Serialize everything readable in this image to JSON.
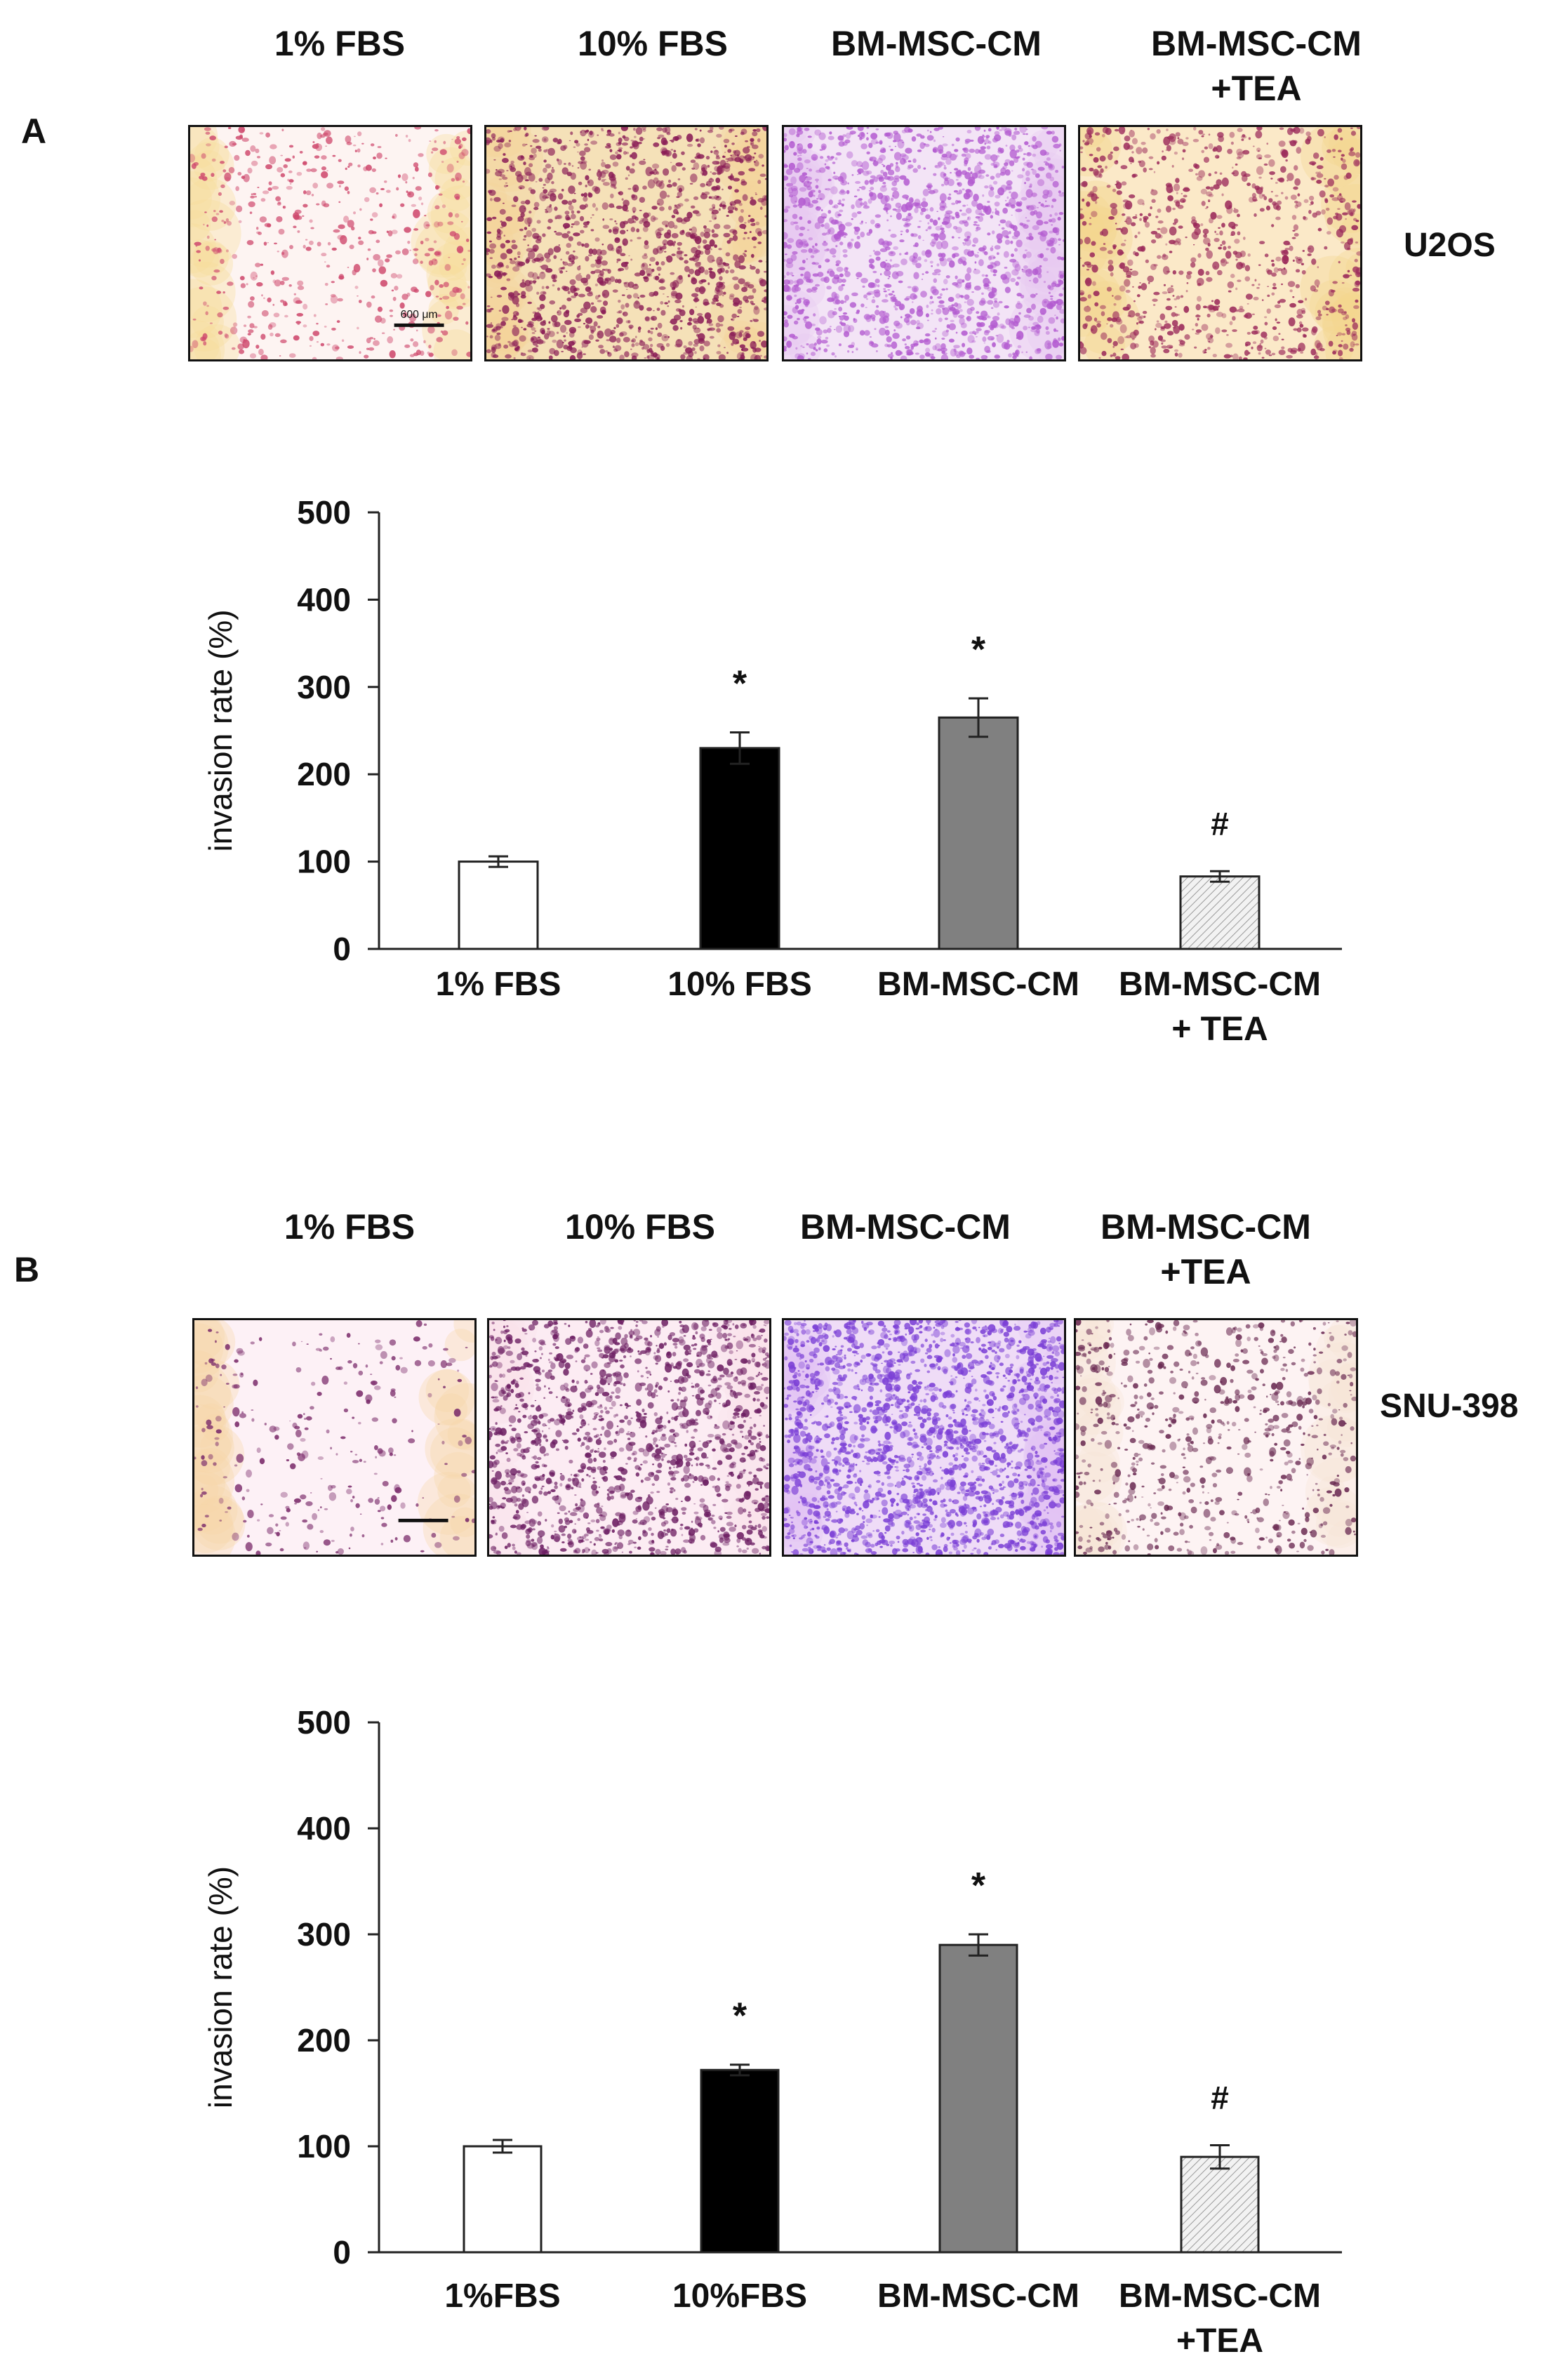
{
  "panels": [
    {
      "letter": "A",
      "cell_line": "U2OS",
      "columns": [
        {
          "title_lines": [
            "1% FBS"
          ]
        },
        {
          "title_lines": [
            "10% FBS"
          ]
        },
        {
          "title_lines": [
            "BM-MSC-CM"
          ]
        },
        {
          "title_lines": [
            "BM-MSC-CM",
            "+TEA"
          ]
        }
      ],
      "images": [
        {
          "stain": "sparse-pink",
          "bg": "#fdf4f2",
          "dot": "#cf4a6e",
          "edge": "#f6dc9a",
          "density": 520
        },
        {
          "stain": "dense-magenta",
          "bg": "#f5e1b8",
          "dot": "#8a1d56",
          "edge": "#f3d49a",
          "density": 1400
        },
        {
          "stain": "dense-violet",
          "bg": "#f3e4f6",
          "dot": "#b35bd0",
          "edge": "#e7c8f0",
          "density": 1500
        },
        {
          "stain": "medium-magenta",
          "bg": "#fbe9c8",
          "dot": "#9b2a5a",
          "edge": "#f4d690",
          "density": 900
        }
      ],
      "scale_bar_label": "600 μm",
      "scale_bar_image": 0
    },
    {
      "letter": "B",
      "cell_line": "SNU-398",
      "columns": [
        {
          "title_lines": [
            "1% FBS"
          ]
        },
        {
          "title_lines": [
            "10% FBS"
          ]
        },
        {
          "title_lines": [
            "BM-MSC-CM"
          ]
        },
        {
          "title_lines": [
            "BM-MSC-CM",
            "+TEA"
          ]
        }
      ],
      "images": [
        {
          "stain": "very-sparse",
          "bg": "#fdf1f6",
          "dot": "#7a2a6a",
          "edge": "#f5d6a8",
          "density": 260
        },
        {
          "stain": "dense-purple",
          "bg": "#fcecf3",
          "dot": "#6d1f63",
          "edge": "#f8e2ec",
          "density": 1500
        },
        {
          "stain": "dense-blue-violet",
          "bg": "#efdcf7",
          "dot": "#7b3fd6",
          "edge": "#e2c4f3",
          "density": 2000
        },
        {
          "stain": "medium-purple",
          "bg": "#fdf3f3",
          "dot": "#6a2a52",
          "edge": "#f7e6d6",
          "density": 700
        }
      ],
      "scale_bar_label": "",
      "scale_bar_image": 0
    }
  ],
  "chart_data": [
    {
      "type": "bar",
      "title": "",
      "xlabel": "",
      "ylabel": "invasion rate (%)",
      "ylim": [
        0,
        500
      ],
      "yticks": [
        0,
        100,
        200,
        300,
        400,
        500
      ],
      "categories": [
        [
          "1% FBS"
        ],
        [
          "10% FBS"
        ],
        [
          "BM-MSC-CM"
        ],
        [
          "BM-MSC-CM",
          "+ TEA"
        ]
      ],
      "values": [
        100,
        230,
        265,
        83
      ],
      "errors": [
        6,
        18,
        22,
        6
      ],
      "annotations": [
        "",
        "*",
        "*",
        "#"
      ],
      "bar_fills": [
        "#ffffff",
        "#000000",
        "#808080",
        "hatch"
      ],
      "grid": false
    },
    {
      "type": "bar",
      "title": "",
      "xlabel": "",
      "ylabel": "invasion rate (%)",
      "ylim": [
        0,
        500
      ],
      "yticks": [
        0,
        100,
        200,
        300,
        400,
        500
      ],
      "categories": [
        [
          "1%FBS"
        ],
        [
          "10%FBS"
        ],
        [
          "BM-MSC-CM"
        ],
        [
          "BM-MSC-CM",
          "+TEA"
        ]
      ],
      "values": [
        100,
        172,
        290,
        90
      ],
      "errors": [
        6,
        5,
        10,
        11
      ],
      "annotations": [
        "",
        "*",
        "*",
        "#"
      ],
      "bar_fills": [
        "#ffffff",
        "#000000",
        "#808080",
        "hatch"
      ],
      "grid": false
    }
  ]
}
